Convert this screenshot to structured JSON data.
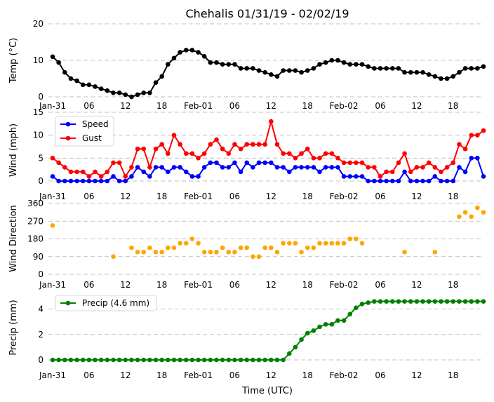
{
  "title": "Chehalis 01/31/19 - 02/02/19",
  "xlabel": "Time (UTC)",
  "x_ticks": [
    "Jan-31",
    "06",
    "12",
    "18",
    "Feb-01",
    "06",
    "12",
    "18",
    "Feb-02",
    "06",
    "12",
    "18"
  ],
  "chart_data": [
    {
      "type": "line",
      "ylabel": "Temp (°C)",
      "ylim": [
        0,
        20
      ],
      "yticks": [
        "0",
        "10",
        "20"
      ],
      "grid": "horizontal dashed",
      "x_unit": "hours since 2019-01-31 00:00 UTC",
      "series": [
        {
          "color": "#000000",
          "marker": "circle",
          "values": [
            11,
            9.4,
            6.7,
            5,
            4.4,
            3.3,
            3.3,
            2.8,
            2.2,
            1.7,
            1.1,
            1.1,
            0.6,
            0,
            0.6,
            1.1,
            1.1,
            3.9,
            5.6,
            8.9,
            10.6,
            12.2,
            12.8,
            12.8,
            12.2,
            11.1,
            9.4,
            9.4,
            8.9,
            8.9,
            8.9,
            7.8,
            7.8,
            7.8,
            7.2,
            6.7,
            6.1,
            5.6,
            7.2,
            7.2,
            7.2,
            6.7,
            7.2,
            7.8,
            8.9,
            9.4,
            10,
            10,
            9.4,
            8.9,
            8.9,
            8.9,
            8.3,
            7.8,
            7.8,
            7.8,
            7.8,
            7.8,
            6.7,
            6.7,
            6.7,
            6.7,
            6.1,
            5.6,
            5,
            5,
            5.6,
            6.7,
            7.8,
            7.8,
            7.8,
            8.3
          ]
        }
      ]
    },
    {
      "type": "line",
      "ylabel": "Wind (mph)",
      "ylim": [
        0,
        15
      ],
      "yticks": [
        "0",
        "5",
        "10",
        "15"
      ],
      "grid": "horizontal dashed",
      "legend": "top-left",
      "series": [
        {
          "name": "Speed",
          "color": "#0000ff",
          "marker": "circle",
          "values": [
            1,
            0,
            0,
            0,
            0,
            0,
            0,
            0,
            0,
            0,
            1,
            0,
            0,
            1,
            3,
            2,
            1,
            3,
            3,
            2,
            3,
            3,
            2,
            1,
            1,
            3,
            4,
            4,
            3,
            3,
            4,
            2,
            4,
            3,
            4,
            4,
            4,
            3,
            3,
            2,
            3,
            3,
            3,
            3,
            2,
            3,
            3,
            3,
            1,
            1,
            1,
            1,
            0,
            0,
            0,
            0,
            0,
            0,
            2,
            0,
            0,
            0,
            0,
            1,
            0,
            0,
            0,
            3,
            2,
            5,
            5,
            1
          ]
        },
        {
          "name": "Gust",
          "color": "#ff0000",
          "marker": "circle",
          "values": [
            5,
            4,
            3,
            2,
            2,
            2,
            1,
            2,
            1,
            2,
            4,
            4,
            1,
            3,
            7,
            7,
            3,
            7,
            8,
            6,
            10,
            8,
            6,
            6,
            5,
            6,
            8,
            9,
            7,
            6,
            8,
            7,
            8,
            8,
            8,
            8,
            13,
            8,
            6,
            6,
            5,
            6,
            7,
            5,
            5,
            6,
            6,
            5,
            4,
            4,
            4,
            4,
            3,
            3,
            1,
            2,
            2,
            4,
            6,
            2,
            3,
            3,
            4,
            3,
            2,
            3,
            4,
            8,
            7,
            10,
            10,
            11
          ]
        }
      ]
    },
    {
      "type": "scatter",
      "ylabel": "Wind Direction",
      "ylim": [
        0,
        360
      ],
      "yticks": [
        "0",
        "90",
        "180",
        "270",
        "360"
      ],
      "grid": "horizontal dashed",
      "series": [
        {
          "color": "#ffa500",
          "marker": "circle",
          "points": [
            [
              0,
              248
            ],
            [
              10,
              90
            ],
            [
              13,
              135
            ],
            [
              14,
              113
            ],
            [
              15,
              113
            ],
            [
              16,
              135
            ],
            [
              17,
              113
            ],
            [
              18,
              113
            ],
            [
              19,
              135
            ],
            [
              20,
              135
            ],
            [
              21,
              158
            ],
            [
              22,
              158
            ],
            [
              23,
              180
            ],
            [
              24,
              158
            ],
            [
              25,
              113
            ],
            [
              26,
              113
            ],
            [
              27,
              113
            ],
            [
              28,
              135
            ],
            [
              29,
              113
            ],
            [
              30,
              113
            ],
            [
              31,
              135
            ],
            [
              32,
              135
            ],
            [
              33,
              90
            ],
            [
              34,
              90
            ],
            [
              35,
              135
            ],
            [
              36,
              135
            ],
            [
              37,
              113
            ],
            [
              38,
              158
            ],
            [
              39,
              158
            ],
            [
              40,
              158
            ],
            [
              41,
              113
            ],
            [
              42,
              135
            ],
            [
              43,
              135
            ],
            [
              44,
              158
            ],
            [
              45,
              158
            ],
            [
              46,
              158
            ],
            [
              47,
              158
            ],
            [
              48,
              158
            ],
            [
              49,
              180
            ],
            [
              50,
              180
            ],
            [
              51,
              158
            ],
            [
              58,
              113
            ],
            [
              63,
              113
            ],
            [
              67,
              293
            ],
            [
              68,
              315
            ],
            [
              69,
              293
            ],
            [
              70,
              338
            ],
            [
              71,
              315
            ]
          ]
        }
      ]
    },
    {
      "type": "line",
      "ylabel": "Precip (mm)",
      "ylim": [
        0,
        4.8
      ],
      "yticks": [
        "0",
        "2",
        "4"
      ],
      "grid": "horizontal dashed",
      "legend": "top-left",
      "series": [
        {
          "name": "Precip (4.6 mm)",
          "color": "#008000",
          "marker": "circle",
          "values": [
            0,
            0,
            0,
            0,
            0,
            0,
            0,
            0,
            0,
            0,
            0,
            0,
            0,
            0,
            0,
            0,
            0,
            0,
            0,
            0,
            0,
            0,
            0,
            0,
            0,
            0,
            0,
            0,
            0,
            0,
            0,
            0,
            0,
            0,
            0,
            0,
            0,
            0,
            0,
            0.5,
            1,
            1.6,
            2.1,
            2.3,
            2.6,
            2.8,
            2.8,
            3.1,
            3.1,
            3.6,
            4.1,
            4.4,
            4.5,
            4.6,
            4.6,
            4.6,
            4.6,
            4.6,
            4.6,
            4.6,
            4.6,
            4.6,
            4.6,
            4.6,
            4.6,
            4.6,
            4.6,
            4.6,
            4.6,
            4.6,
            4.6,
            4.6
          ]
        }
      ]
    }
  ]
}
